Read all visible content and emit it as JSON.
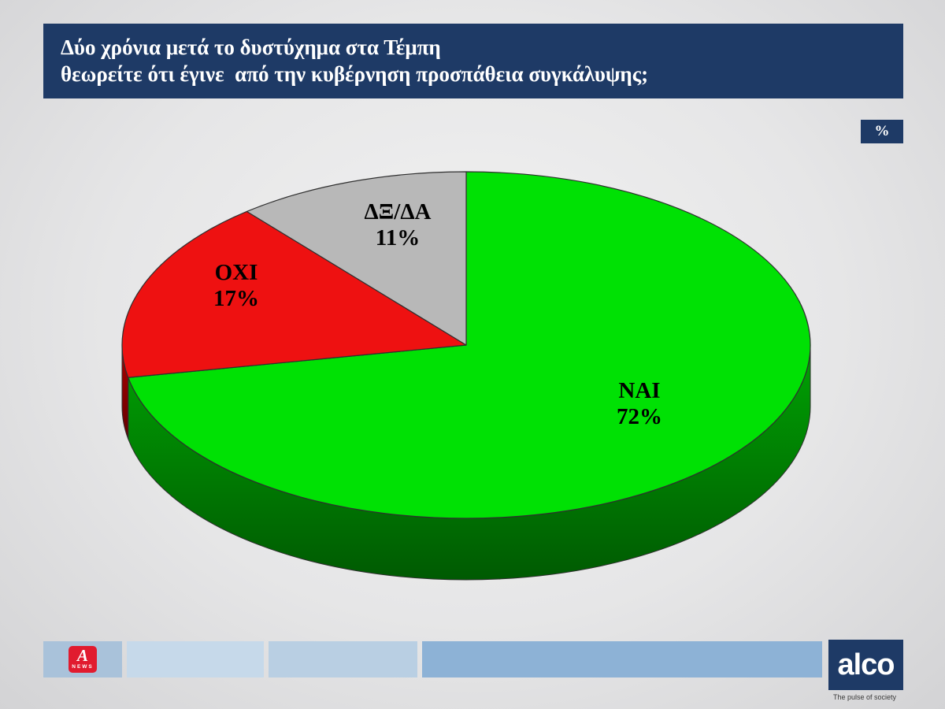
{
  "header": {
    "title_line1": "Δύο χρόνια μετά το δυστύχημα στα Τέμπη",
    "title_line2": "θεωρείτε ότι έγινε  από την κυβέρνηση προσπάθεια συγκάλυψης;"
  },
  "unit_badge": "%",
  "accent_navy": "#1e3a66",
  "chart_data": {
    "type": "pie",
    "effect": "3d",
    "labels": [
      "ΝΑΙ",
      "ΟΧΙ",
      "ΔΞ/ΔΑ"
    ],
    "values": [
      72,
      17,
      11
    ],
    "colors": [
      "#00e104",
      "#ee1111",
      "#b8b8b8"
    ],
    "side_colors": [
      "#00a303",
      "#b00000",
      "#8d8d8d"
    ],
    "start_angle_deg": 0,
    "direction": "clockwise",
    "label_format": "{label}\n{value}%",
    "legend": "none"
  },
  "footer": {
    "alpha_logo": {
      "letter": "A",
      "news": "NEWS"
    },
    "alco_logo": {
      "name": "alco",
      "tagline": "The pulse of society"
    }
  }
}
